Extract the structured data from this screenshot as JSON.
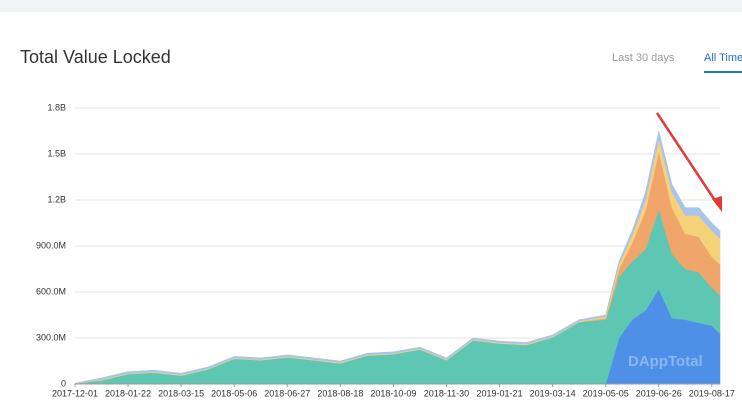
{
  "header": {
    "title": "Total Value Locked",
    "tabs": [
      "Last 30 days",
      "All Time"
    ],
    "active_tab": 1
  },
  "chart_data": {
    "type": "stacked-area",
    "watermark": "DAppTotal",
    "x": [
      "2017-12-01",
      "2017-12-27",
      "2018-01-22",
      "2018-02-17",
      "2018-03-15",
      "2018-04-10",
      "2018-05-06",
      "2018-06-01",
      "2018-06-27",
      "2018-07-23",
      "2018-08-18",
      "2018-09-13",
      "2018-10-09",
      "2018-11-04",
      "2018-11-30",
      "2018-12-26",
      "2019-01-21",
      "2019-02-16",
      "2019-03-14",
      "2019-04-09",
      "2019-05-05",
      "2019-05-18",
      "2019-05-31",
      "2019-06-13",
      "2019-06-26",
      "2019-07-09",
      "2019-07-22",
      "2019-08-04",
      "2019-08-17",
      "2019-08-25"
    ],
    "series": [
      {
        "color": "#4e8fe8",
        "values": [
          0,
          0,
          0,
          0,
          0,
          0,
          0,
          0,
          0,
          0,
          0,
          0,
          0,
          0,
          0,
          0,
          0,
          0,
          0,
          0,
          0,
          300000000,
          420000000,
          480000000,
          620000000,
          430000000,
          420000000,
          400000000,
          380000000,
          330000000
        ]
      },
      {
        "color": "#5ec7b4",
        "values": [
          3000000,
          25000000,
          65000000,
          75000000,
          55000000,
          95000000,
          165000000,
          155000000,
          175000000,
          155000000,
          135000000,
          185000000,
          195000000,
          225000000,
          155000000,
          285000000,
          265000000,
          255000000,
          305000000,
          405000000,
          420000000,
          400000000,
          380000000,
          400000000,
          520000000,
          420000000,
          330000000,
          330000000,
          250000000,
          250000000
        ]
      },
      {
        "color": "#f0a56a",
        "values": [
          0,
          0,
          0,
          0,
          0,
          0,
          0,
          0,
          0,
          0,
          0,
          0,
          0,
          0,
          0,
          0,
          0,
          0,
          0,
          0,
          10000000,
          50000000,
          120000000,
          250000000,
          380000000,
          300000000,
          230000000,
          230000000,
          200000000,
          200000000
        ]
      },
      {
        "color": "#f5d27a",
        "values": [
          1000000,
          5000000,
          5000000,
          5000000,
          5000000,
          5000000,
          5000000,
          5000000,
          5000000,
          5000000,
          5000000,
          5000000,
          5000000,
          5000000,
          5000000,
          5000000,
          5000000,
          5000000,
          5000000,
          5000000,
          10000000,
          30000000,
          50000000,
          70000000,
          80000000,
          100000000,
          120000000,
          140000000,
          170000000,
          170000000
        ]
      },
      {
        "color": "#a9c4ec",
        "values": [
          1000000,
          10000000,
          10000000,
          10000000,
          10000000,
          10000000,
          10000000,
          10000000,
          10000000,
          10000000,
          10000000,
          10000000,
          10000000,
          10000000,
          10000000,
          10000000,
          10000000,
          10000000,
          10000000,
          10000000,
          10000000,
          20000000,
          30000000,
          50000000,
          50000000,
          50000000,
          50000000,
          50000000,
          50000000,
          50000000
        ]
      }
    ],
    "xlim": [
      "2017-12-01",
      "2019-08-25"
    ],
    "xticks": [
      "2017-12-01",
      "2018-01-22",
      "2018-03-15",
      "2018-05-06",
      "2018-06-27",
      "2018-08-18",
      "2018-10-09",
      "2018-11-30",
      "2019-01-21",
      "2019-03-14",
      "2019-05-05",
      "2019-06-26",
      "2019-08-17"
    ],
    "ylim": [
      0,
      1800000000
    ],
    "yticks": [
      0,
      {
        "value": 300000000,
        "label": "300.0M"
      },
      {
        "value": 600000000,
        "label": "600.0M"
      },
      {
        "value": 900000000,
        "label": "900.0M"
      },
      {
        "value": 1200000000,
        "label": "1.2B"
      },
      {
        "value": 1500000000,
        "label": "1.5B"
      },
      {
        "value": 1800000000,
        "label": "1.8B"
      }
    ],
    "grid": true
  }
}
